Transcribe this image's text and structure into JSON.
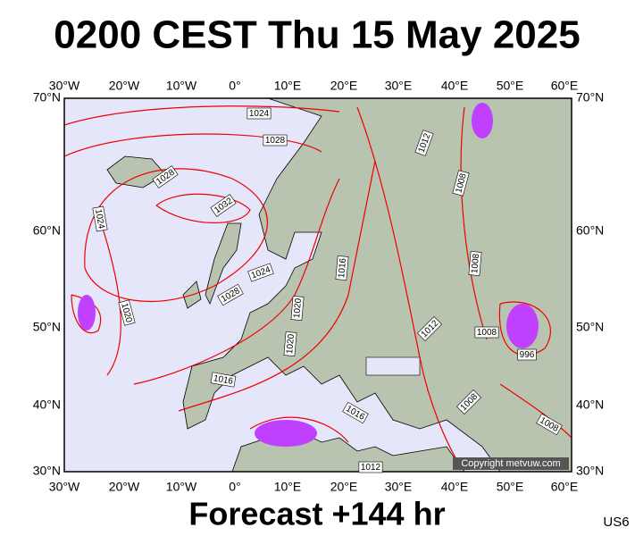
{
  "header": {
    "title": "0200 CEST Thu 15 May 2025"
  },
  "map": {
    "longitude_labels": [
      "30°W",
      "20°W",
      "10°W",
      "0°",
      "10°E",
      "20°E",
      "30°E",
      "40°E",
      "50°E",
      "60°E"
    ],
    "latitude_labels": [
      "70°N",
      "60°N",
      "50°N",
      "40°N",
      "30°N"
    ],
    "isobar_labels": [
      "1024",
      "1028",
      "1028",
      "1032",
      "1024",
      "1024",
      "1028",
      "1020",
      "1016",
      "1020",
      "1020",
      "1016",
      "1016",
      "1012",
      "1008",
      "1008",
      "1012",
      "1008",
      "996",
      "1008",
      "1008",
      "1012"
    ],
    "copyright": "Copyright metvuw.com"
  },
  "footer": {
    "forecast": "Forecast +144 hr",
    "model": "US6"
  }
}
